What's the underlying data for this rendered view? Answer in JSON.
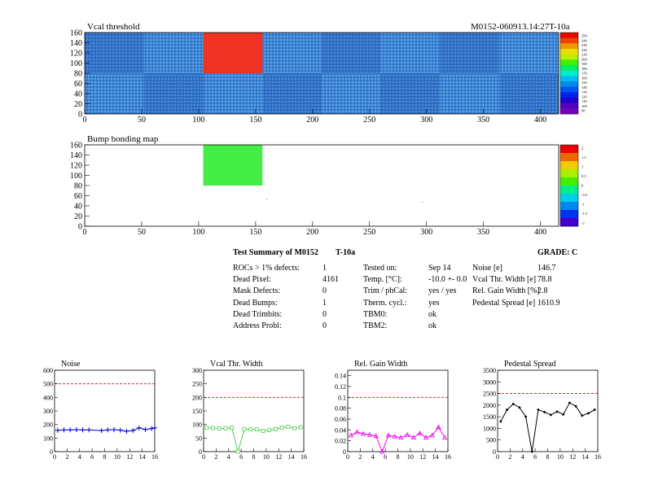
{
  "heatmap_top": {
    "title": "Vcal threshold",
    "module_label": "M0152-060913.14:27T-10a",
    "x_ticks": [
      "0",
      "50",
      "100",
      "150",
      "200",
      "250",
      "300",
      "350",
      "400"
    ],
    "y_ticks": [
      "0",
      "20",
      "40",
      "60",
      "80",
      "100",
      "120",
      "140",
      "160"
    ],
    "scale_ticks": [
      "250",
      "240",
      "230",
      "220",
      "210",
      "200",
      "190",
      "180",
      "170",
      "160",
      "150",
      "140",
      "130",
      "120",
      "110",
      "100",
      "90"
    ],
    "colors": {
      "base": "#4488d8",
      "hot": "#ee3322"
    }
  },
  "heatmap_bump": {
    "title": "Bump bonding map",
    "x_ticks": [
      "0",
      "50",
      "100",
      "150",
      "200",
      "250",
      "300",
      "350",
      "400"
    ],
    "y_ticks": [
      "0",
      "20",
      "40",
      "60",
      "80",
      "100",
      "120",
      "140",
      "160"
    ],
    "scale_ticks": [
      "2",
      "1.5",
      "1",
      "0.5",
      "0",
      "-0.5",
      "-1",
      "-1.5",
      "-2"
    ],
    "colors": {
      "defect": "#44ee44"
    }
  },
  "summary": {
    "title": "Test Summary of M0152",
    "temp_code": "T-10a",
    "grade": "GRADE:  C",
    "rows": [
      {
        "label": "ROCs > 1% defects:",
        "value": "1",
        "label2": "Tested on:",
        "value2": "Sep 14",
        "label3": "Noise [e]",
        "value3": "146.7"
      },
      {
        "label": "Dead Pixel:",
        "value": "4161",
        "label2": "Temp. [°C]:",
        "value2": "-10.0 +- 0.0",
        "label3": "Vcal Thr. Width [e]",
        "value3": "78.8"
      },
      {
        "label": "Mask Defects:",
        "value": "0",
        "label2": "Trim / phCal:",
        "value2": "yes / yes",
        "label3": "Rel. Gain Width [%]",
        "value3": "2.8"
      },
      {
        "label": "Dead Bumps:",
        "value": "1",
        "label2": "Therm. cycl.:",
        "value2": "yes",
        "label3": "Pedestal Spread [e]",
        "value3": "1610.9"
      },
      {
        "label": "Dead Trimbits:",
        "value": "0",
        "label2": "TBM0:",
        "value2": "ok",
        "label3": "",
        "value3": ""
      },
      {
        "label": "Address Probl:",
        "value": "0",
        "label2": "TBM2:",
        "value2": "ok",
        "label3": "",
        "value3": ""
      }
    ]
  },
  "chart_data": [
    {
      "type": "heatmap",
      "title": "Vcal threshold",
      "xlim": [
        0,
        416
      ],
      "ylim": [
        0,
        160
      ],
      "cells": [
        {
          "roc": "top-2",
          "x_range": [
            104,
            156
          ],
          "y_range": [
            80,
            160
          ],
          "level": "high (~250)"
        }
      ],
      "typical_level": "~140-160"
    },
    {
      "type": "heatmap",
      "title": "Bump bonding map",
      "xlim": [
        0,
        416
      ],
      "ylim": [
        0,
        160
      ],
      "cells": [
        {
          "roc": "top-2",
          "x_range": [
            104,
            156
          ],
          "y_range": [
            80,
            160
          ],
          "value": 0
        }
      ]
    },
    {
      "type": "line",
      "title": "Noise",
      "color": "#0000cc",
      "marker": "plus",
      "x": [
        0,
        1,
        2,
        3,
        4,
        5,
        7,
        8,
        9,
        10,
        11,
        12,
        13,
        14,
        15,
        16
      ],
      "values": [
        157,
        160,
        160,
        162,
        160,
        160,
        155,
        160,
        162,
        158,
        150,
        155,
        175,
        163,
        170,
        175
      ],
      "xlim": [
        0,
        16
      ],
      "ylim": [
        0,
        600
      ],
      "limit": 500,
      "x_ticks": [
        "0",
        "2",
        "4",
        "6",
        "8",
        "10",
        "12",
        "14",
        "16"
      ],
      "y_ticks": [
        "0",
        "100",
        "200",
        "300",
        "400",
        "500",
        "600"
      ]
    },
    {
      "type": "line",
      "title": "Vcal Thr. Width",
      "color": "#55cc55",
      "marker": "square",
      "x": [
        0,
        1,
        2,
        3,
        4,
        5,
        6,
        7,
        8,
        9,
        10,
        11,
        12,
        13,
        14,
        15
      ],
      "values": [
        88,
        87,
        85,
        86,
        88,
        0,
        82,
        82,
        82,
        76,
        79,
        83,
        88,
        92,
        86,
        90
      ],
      "xlim": [
        0,
        16
      ],
      "ylim": [
        0,
        300
      ],
      "limit": 200,
      "x_ticks": [
        "0",
        "2",
        "4",
        "6",
        "8",
        "10",
        "12",
        "14",
        "16"
      ],
      "y_ticks": [
        "0",
        "50",
        "100",
        "150",
        "200",
        "250",
        "300"
      ]
    },
    {
      "type": "line",
      "title": "Rel. Gain Width",
      "color": "#ee00ee",
      "marker": "triangle",
      "x": [
        0,
        1,
        2,
        3,
        4,
        5,
        6,
        7,
        8,
        9,
        10,
        11,
        12,
        13,
        14,
        15
      ],
      "values": [
        0.03,
        0.036,
        0.033,
        0.031,
        0.029,
        0.0,
        0.03,
        0.028,
        0.026,
        0.031,
        0.026,
        0.034,
        0.026,
        0.03,
        0.045,
        0.026
      ],
      "xlim": [
        0,
        16
      ],
      "ylim": [
        0,
        0.15
      ],
      "limit": 0.1,
      "x_ticks": [
        "0",
        "2",
        "4",
        "6",
        "8",
        "10",
        "12",
        "14",
        "16"
      ],
      "y_ticks": [
        "0",
        "0.02",
        "0.04",
        "0.06",
        "0.08",
        "0.1",
        "0.12",
        "0.14"
      ]
    },
    {
      "type": "line",
      "title": "Pedestal Spread",
      "color": "#000000",
      "marker": "dot",
      "x": [
        0,
        1,
        2,
        3,
        4,
        5,
        6,
        7,
        8,
        9,
        10,
        11,
        12,
        13,
        14,
        15
      ],
      "values": [
        1300,
        1800,
        2050,
        1900,
        1500,
        0,
        1800,
        1700,
        1580,
        1720,
        1600,
        2100,
        1950,
        1550,
        1650,
        1800
      ],
      "xlim": [
        0,
        16
      ],
      "ylim": [
        0,
        3500
      ],
      "limit": 2500,
      "x_ticks": [
        "0",
        "2",
        "4",
        "6",
        "8",
        "10",
        "12",
        "14",
        "16"
      ],
      "y_ticks": [
        "0",
        "500",
        "1000",
        "1500",
        "2000",
        "2500",
        "3000",
        "3500"
      ]
    }
  ]
}
